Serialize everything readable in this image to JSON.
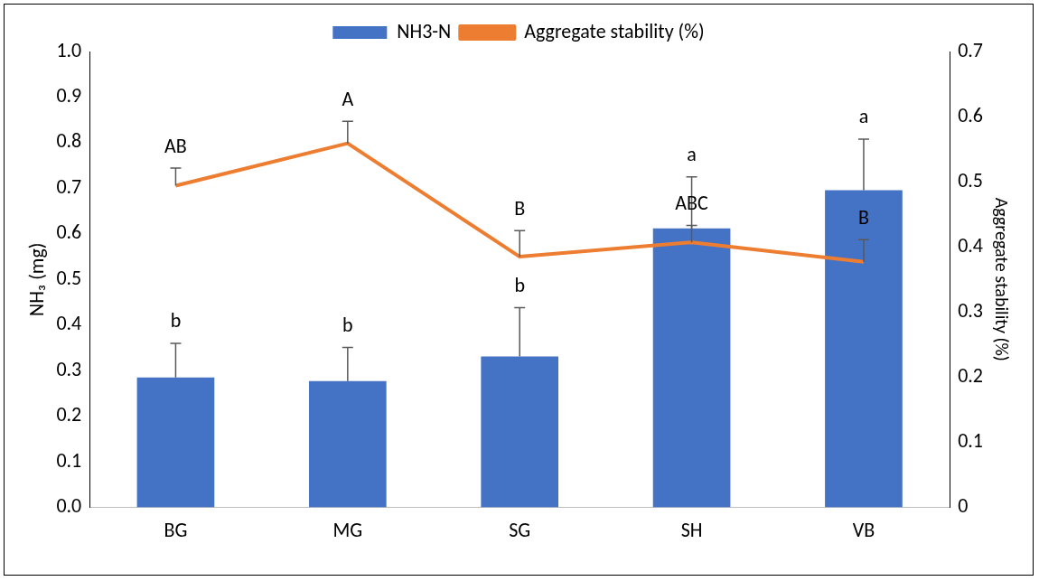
{
  "chart_data": {
    "type": "bar",
    "categories": [
      "BG",
      "MG",
      "SG",
      "SH",
      "VB"
    ],
    "series": [
      {
        "name": "NH3-N",
        "color": "#4472c4",
        "values": [
          0.285,
          0.277,
          0.331,
          0.612,
          0.696
        ],
        "errors": [
          [
            0.285,
            0.36
          ],
          [
            0.277,
            0.351
          ],
          [
            0.331,
            0.438
          ],
          [
            0.612,
            0.725
          ],
          [
            0.696,
            0.808
          ]
        ]
      },
      {
        "name": "Aggregate stability (%)",
        "type": "line",
        "axis": "y2",
        "color": "#ed7d31",
        "values": [
          0.494,
          0.559,
          0.385,
          0.407,
          0.377
        ],
        "errors": [
          [
            0.494,
            0.521
          ],
          [
            0.559,
            0.593
          ],
          [
            0.385,
            0.425
          ],
          [
            0.407,
            0.433
          ],
          [
            0.377,
            0.411
          ]
        ]
      }
    ],
    "ylabel": "NH₃ (mg)",
    "y2label": "Aggregate stability (%)",
    "ylim": [
      0,
      1
    ],
    "yticks": [
      {
        "value": 0,
        "label": "0.0"
      },
      0.1,
      0.2,
      0.3,
      0.4,
      0.5,
      0.6,
      0.7,
      0.8,
      0.9,
      {
        "value": 1,
        "label": "1.0"
      }
    ],
    "y2lim": [
      0,
      0.7
    ],
    "y2ticks": [
      0,
      0.1,
      0.2,
      0.3,
      0.4,
      0.5,
      0.6,
      0.7
    ],
    "annotations": [
      "b",
      "b",
      "b",
      "a",
      "a",
      "AB",
      "A",
      "B",
      "ABC",
      "B"
    ],
    "legend": "top",
    "grid": false,
    "marker": "none",
    "line_style": "solid"
  }
}
